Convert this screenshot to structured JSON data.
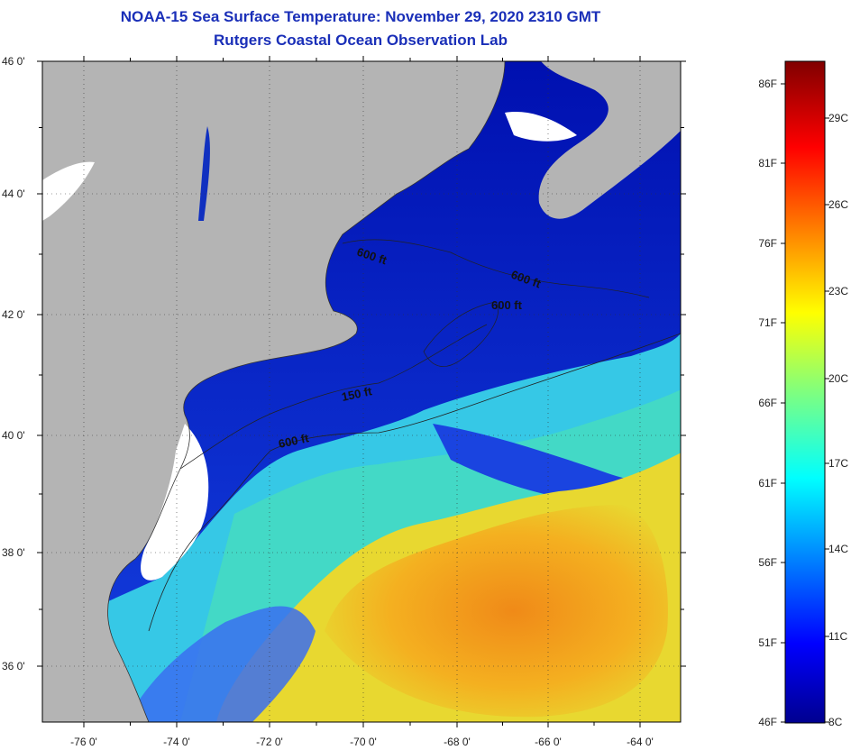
{
  "title": {
    "line1": "NOAA-15 Sea Surface Temperature:  November 29, 2020 2310 GMT",
    "line2": "Rutgers Coastal Ocean Observation Lab"
  },
  "map": {
    "lat_labels": [
      "46 0'",
      "44 0'",
      "42 0'",
      "40 0'",
      "38 0'",
      "36 0'"
    ],
    "lon_labels": [
      "-76 0'",
      "-74 0'",
      "-72 0'",
      "-70 0'",
      "-68 0'",
      "-66 0'",
      "-64 0'"
    ],
    "contour_labels": [
      {
        "text": "600 ft",
        "rotate": 18
      },
      {
        "text": "600 ft",
        "rotate": 20
      },
      {
        "text": "600 ft",
        "rotate": 0
      },
      {
        "text": "150 ft",
        "rotate": -12
      },
      {
        "text": "600 ft",
        "rotate": -12
      }
    ],
    "colors": {
      "land": "#b4b4b4",
      "nodata": "#ffffff",
      "cold": "#0010a0",
      "warm": "#f4a020"
    }
  },
  "colorbar": {
    "fahrenheit": [
      "86F",
      "81F",
      "76F",
      "71F",
      "66F",
      "61F",
      "56F",
      "51F",
      "46F"
    ],
    "celsius": [
      "29C",
      "26C",
      "23C",
      "20C",
      "17C",
      "14C",
      "11C",
      "8C"
    ]
  }
}
